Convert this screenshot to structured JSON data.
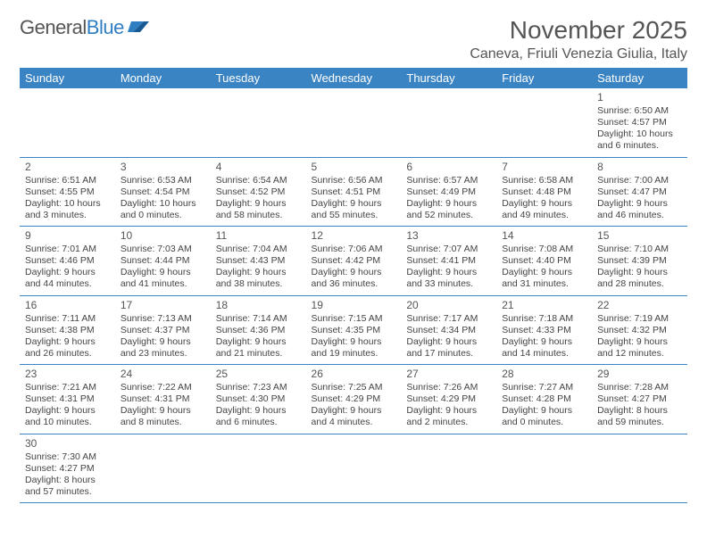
{
  "header": {
    "logo_text_a": "General",
    "logo_text_b": "Blue",
    "title": "November 2025",
    "location": "Caneva, Friuli Venezia Giulia, Italy"
  },
  "colors": {
    "header_bg": "#3b84c4",
    "header_fg": "#ffffff",
    "row_divider": "#bcbcbc",
    "row_bottom": "#3b84c4",
    "text": "#444444",
    "title": "#555555"
  },
  "days_of_week": [
    "Sunday",
    "Monday",
    "Tuesday",
    "Wednesday",
    "Thursday",
    "Friday",
    "Saturday"
  ],
  "weeks": [
    [
      null,
      null,
      null,
      null,
      null,
      null,
      {
        "n": "1",
        "sr": "Sunrise: 6:50 AM",
        "ss": "Sunset: 4:57 PM",
        "dl": "Daylight: 10 hours and 6 minutes."
      }
    ],
    [
      {
        "n": "2",
        "sr": "Sunrise: 6:51 AM",
        "ss": "Sunset: 4:55 PM",
        "dl": "Daylight: 10 hours and 3 minutes."
      },
      {
        "n": "3",
        "sr": "Sunrise: 6:53 AM",
        "ss": "Sunset: 4:54 PM",
        "dl": "Daylight: 10 hours and 0 minutes."
      },
      {
        "n": "4",
        "sr": "Sunrise: 6:54 AM",
        "ss": "Sunset: 4:52 PM",
        "dl": "Daylight: 9 hours and 58 minutes."
      },
      {
        "n": "5",
        "sr": "Sunrise: 6:56 AM",
        "ss": "Sunset: 4:51 PM",
        "dl": "Daylight: 9 hours and 55 minutes."
      },
      {
        "n": "6",
        "sr": "Sunrise: 6:57 AM",
        "ss": "Sunset: 4:49 PM",
        "dl": "Daylight: 9 hours and 52 minutes."
      },
      {
        "n": "7",
        "sr": "Sunrise: 6:58 AM",
        "ss": "Sunset: 4:48 PM",
        "dl": "Daylight: 9 hours and 49 minutes."
      },
      {
        "n": "8",
        "sr": "Sunrise: 7:00 AM",
        "ss": "Sunset: 4:47 PM",
        "dl": "Daylight: 9 hours and 46 minutes."
      }
    ],
    [
      {
        "n": "9",
        "sr": "Sunrise: 7:01 AM",
        "ss": "Sunset: 4:46 PM",
        "dl": "Daylight: 9 hours and 44 minutes."
      },
      {
        "n": "10",
        "sr": "Sunrise: 7:03 AM",
        "ss": "Sunset: 4:44 PM",
        "dl": "Daylight: 9 hours and 41 minutes."
      },
      {
        "n": "11",
        "sr": "Sunrise: 7:04 AM",
        "ss": "Sunset: 4:43 PM",
        "dl": "Daylight: 9 hours and 38 minutes."
      },
      {
        "n": "12",
        "sr": "Sunrise: 7:06 AM",
        "ss": "Sunset: 4:42 PM",
        "dl": "Daylight: 9 hours and 36 minutes."
      },
      {
        "n": "13",
        "sr": "Sunrise: 7:07 AM",
        "ss": "Sunset: 4:41 PM",
        "dl": "Daylight: 9 hours and 33 minutes."
      },
      {
        "n": "14",
        "sr": "Sunrise: 7:08 AM",
        "ss": "Sunset: 4:40 PM",
        "dl": "Daylight: 9 hours and 31 minutes."
      },
      {
        "n": "15",
        "sr": "Sunrise: 7:10 AM",
        "ss": "Sunset: 4:39 PM",
        "dl": "Daylight: 9 hours and 28 minutes."
      }
    ],
    [
      {
        "n": "16",
        "sr": "Sunrise: 7:11 AM",
        "ss": "Sunset: 4:38 PM",
        "dl": "Daylight: 9 hours and 26 minutes."
      },
      {
        "n": "17",
        "sr": "Sunrise: 7:13 AM",
        "ss": "Sunset: 4:37 PM",
        "dl": "Daylight: 9 hours and 23 minutes."
      },
      {
        "n": "18",
        "sr": "Sunrise: 7:14 AM",
        "ss": "Sunset: 4:36 PM",
        "dl": "Daylight: 9 hours and 21 minutes."
      },
      {
        "n": "19",
        "sr": "Sunrise: 7:15 AM",
        "ss": "Sunset: 4:35 PM",
        "dl": "Daylight: 9 hours and 19 minutes."
      },
      {
        "n": "20",
        "sr": "Sunrise: 7:17 AM",
        "ss": "Sunset: 4:34 PM",
        "dl": "Daylight: 9 hours and 17 minutes."
      },
      {
        "n": "21",
        "sr": "Sunrise: 7:18 AM",
        "ss": "Sunset: 4:33 PM",
        "dl": "Daylight: 9 hours and 14 minutes."
      },
      {
        "n": "22",
        "sr": "Sunrise: 7:19 AM",
        "ss": "Sunset: 4:32 PM",
        "dl": "Daylight: 9 hours and 12 minutes."
      }
    ],
    [
      {
        "n": "23",
        "sr": "Sunrise: 7:21 AM",
        "ss": "Sunset: 4:31 PM",
        "dl": "Daylight: 9 hours and 10 minutes."
      },
      {
        "n": "24",
        "sr": "Sunrise: 7:22 AM",
        "ss": "Sunset: 4:31 PM",
        "dl": "Daylight: 9 hours and 8 minutes."
      },
      {
        "n": "25",
        "sr": "Sunrise: 7:23 AM",
        "ss": "Sunset: 4:30 PM",
        "dl": "Daylight: 9 hours and 6 minutes."
      },
      {
        "n": "26",
        "sr": "Sunrise: 7:25 AM",
        "ss": "Sunset: 4:29 PM",
        "dl": "Daylight: 9 hours and 4 minutes."
      },
      {
        "n": "27",
        "sr": "Sunrise: 7:26 AM",
        "ss": "Sunset: 4:29 PM",
        "dl": "Daylight: 9 hours and 2 minutes."
      },
      {
        "n": "28",
        "sr": "Sunrise: 7:27 AM",
        "ss": "Sunset: 4:28 PM",
        "dl": "Daylight: 9 hours and 0 minutes."
      },
      {
        "n": "29",
        "sr": "Sunrise: 7:28 AM",
        "ss": "Sunset: 4:27 PM",
        "dl": "Daylight: 8 hours and 59 minutes."
      }
    ],
    [
      {
        "n": "30",
        "sr": "Sunrise: 7:30 AM",
        "ss": "Sunset: 4:27 PM",
        "dl": "Daylight: 8 hours and 57 minutes."
      },
      null,
      null,
      null,
      null,
      null,
      null
    ]
  ]
}
